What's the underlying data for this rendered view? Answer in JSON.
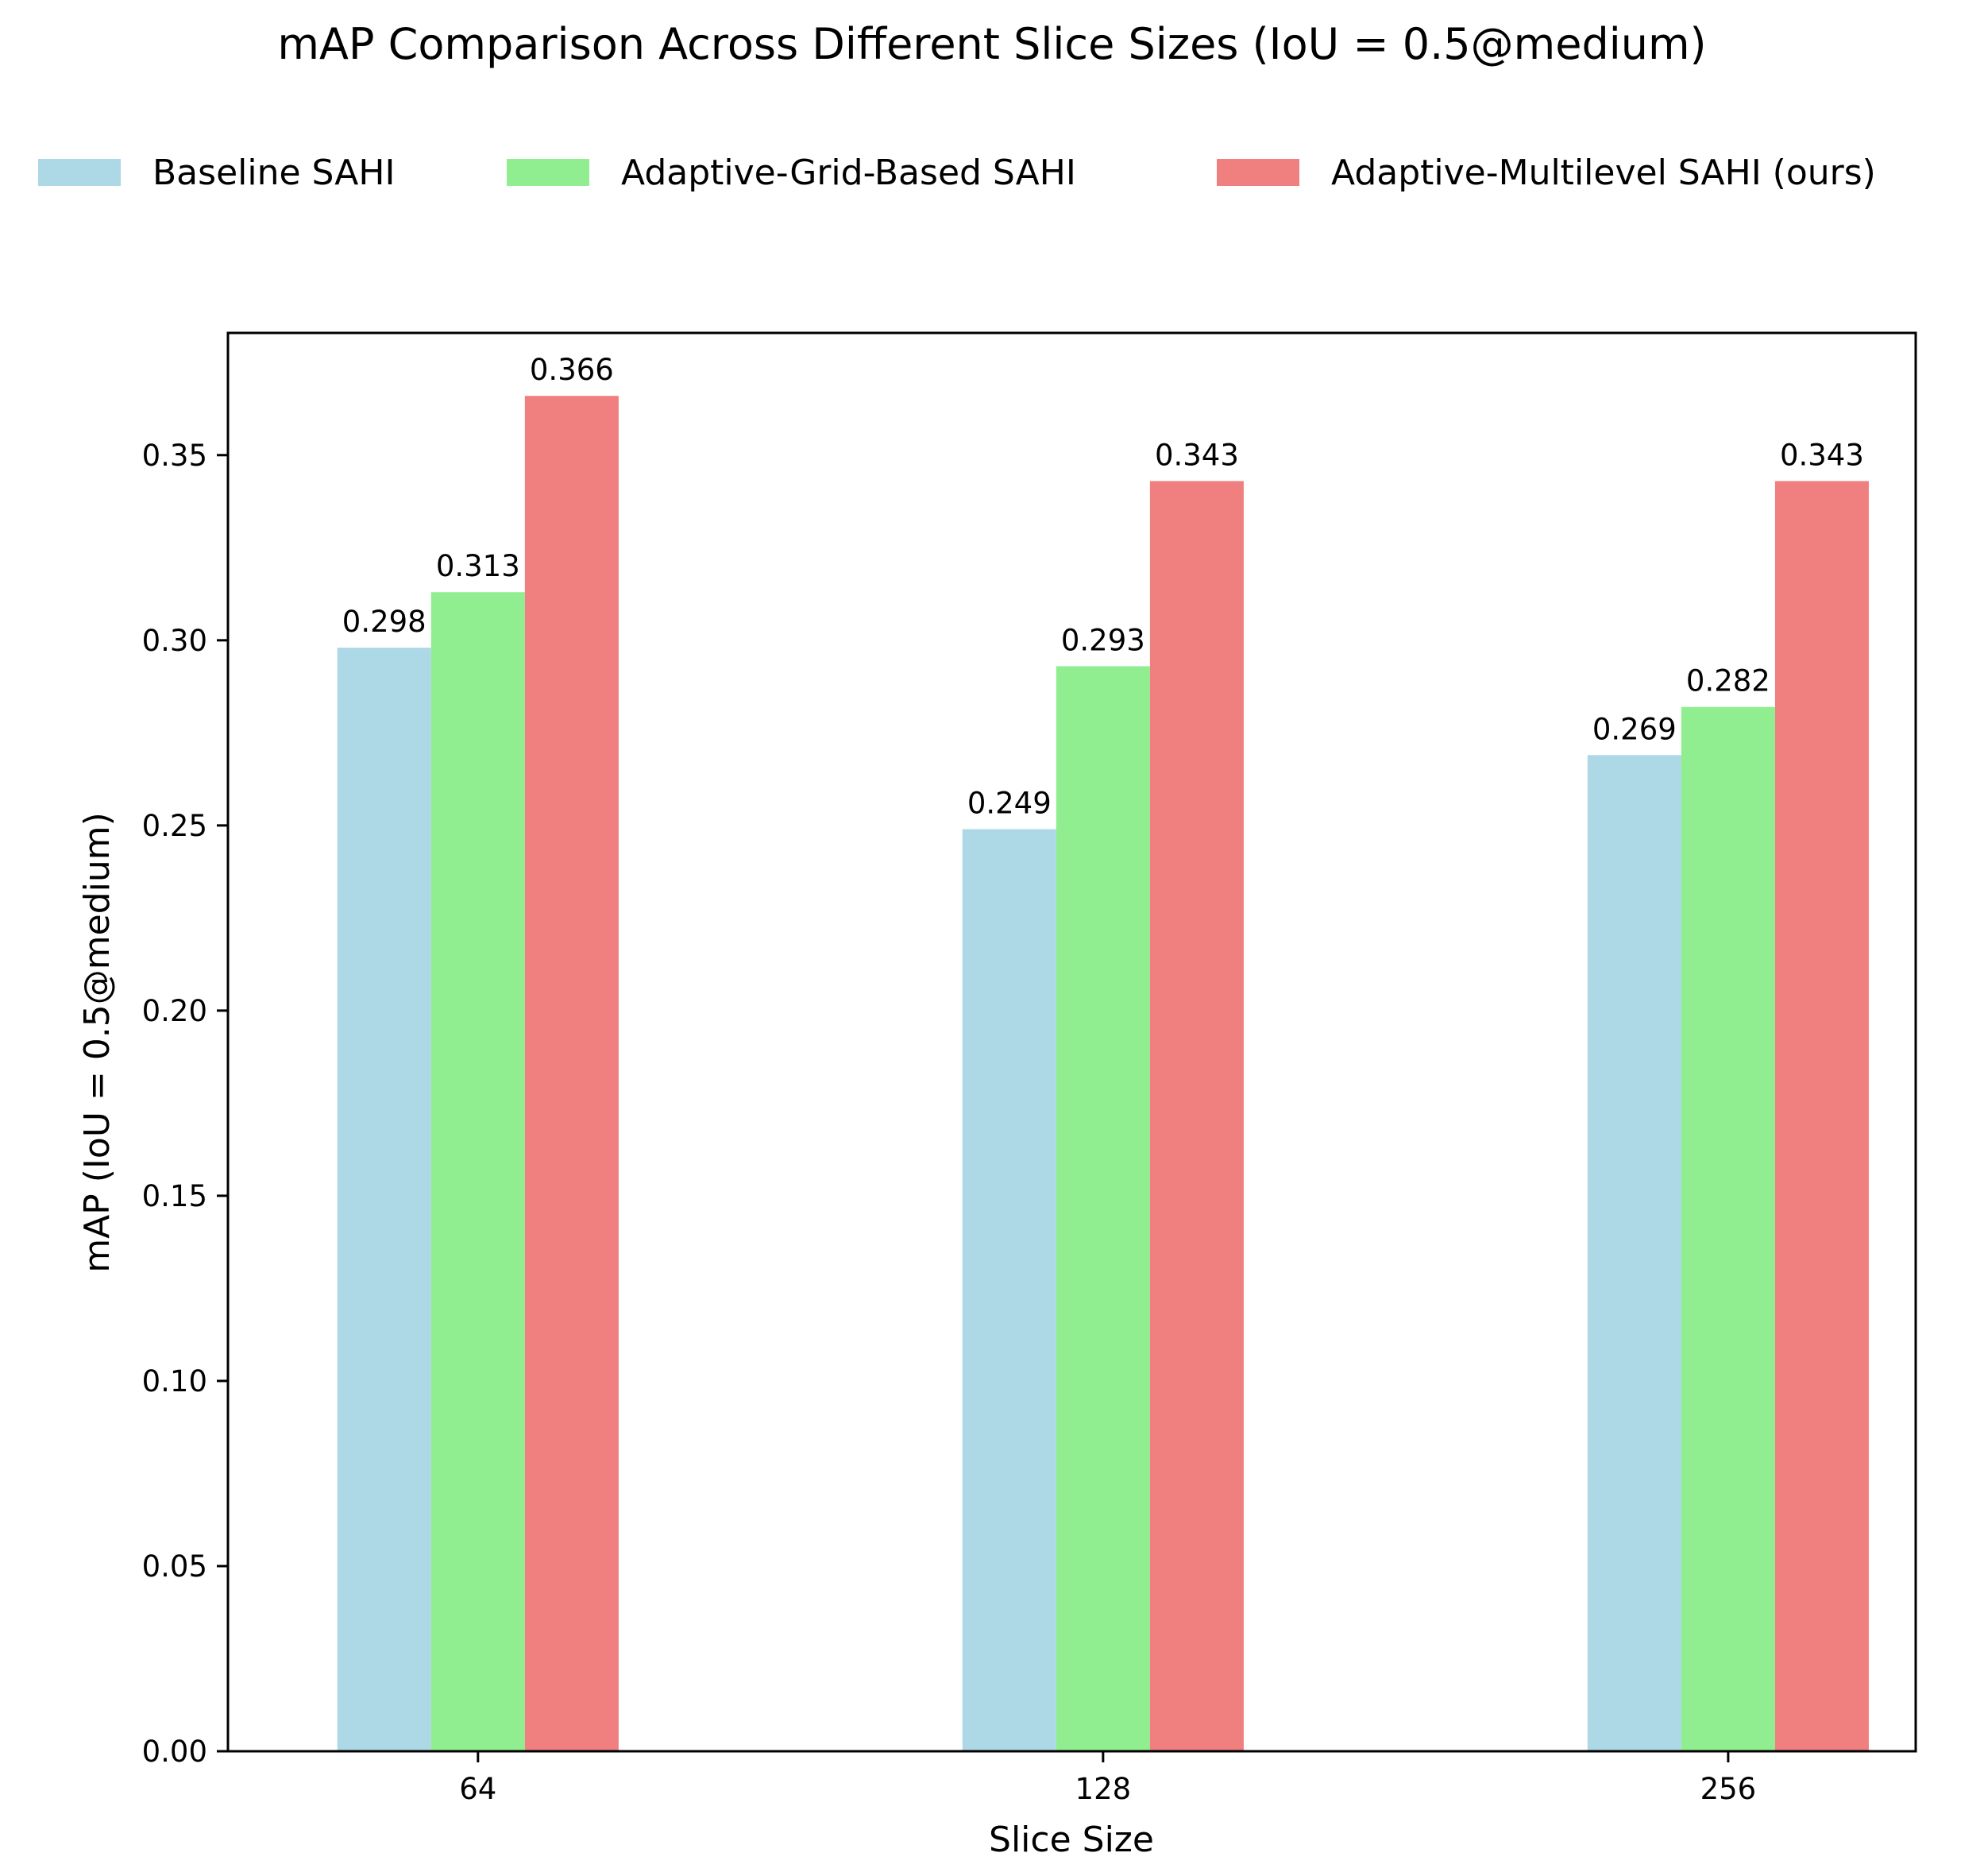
{
  "chart_data": {
    "type": "bar",
    "title": "mAP Comparison Across Different Slice Sizes (IoU = 0.5@medium)",
    "xlabel": "Slice Size",
    "ylabel": "mAP (IoU = 0.5@medium)",
    "categories": [
      "64",
      "128",
      "256"
    ],
    "ylim": [
      0,
      0.383
    ],
    "yticks": [
      "0.00",
      "0.05",
      "0.10",
      "0.15",
      "0.20",
      "0.25",
      "0.30",
      "0.35"
    ],
    "grid": false,
    "legend_position": "top",
    "series": [
      {
        "name": "Baseline SAHI",
        "color": "#add8e6",
        "values": [
          0.298,
          0.249,
          0.269
        ],
        "labels": [
          "0.298",
          "0.249",
          "0.269"
        ]
      },
      {
        "name": "Adaptive-Grid-Based SAHI",
        "color": "#90ee90",
        "values": [
          0.313,
          0.293,
          0.282
        ],
        "labels": [
          "0.313",
          "0.293",
          "0.282"
        ]
      },
      {
        "name": "Adaptive-Multilevel SAHI (ours)",
        "color": "#f08080",
        "values": [
          0.366,
          0.343,
          0.343
        ],
        "labels": [
          "0.366",
          "0.343",
          "0.343"
        ]
      }
    ]
  }
}
